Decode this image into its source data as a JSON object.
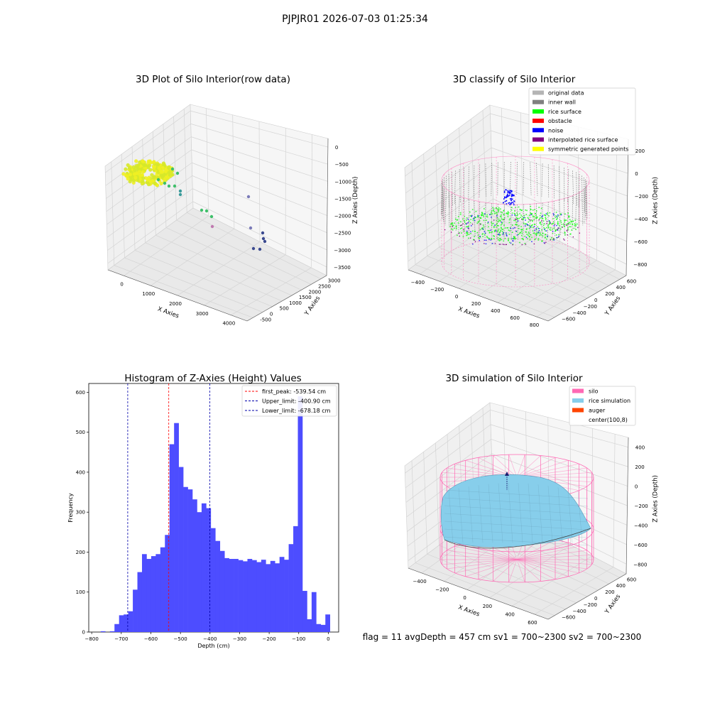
{
  "page": {
    "suptitle": "PJPJR01 2026-07-03 01:25:34",
    "footer": "flag = 11  avgDepth = 457 cm  sv1 = 700~2300  sv2 = 700~2300"
  },
  "chart_data": [
    {
      "type": "scatter",
      "title": "3D Plot of Silo Interior(row data)",
      "xlabel": "X Axies",
      "ylabel": "Y Axies",
      "zlabel": "Z Axies (Depth)",
      "xticks": [
        "0",
        "1000",
        "2000",
        "3000",
        "4000"
      ],
      "yticks": [
        "-500",
        "0",
        "500",
        "1000",
        "1500",
        "2000",
        "2500",
        "3000"
      ],
      "zticks": [
        "0",
        "−500",
        "−1000",
        "−1500",
        "−2000",
        "−2500",
        "−3000",
        "−3500"
      ],
      "xlim": [
        -500,
        4200
      ],
      "ylim": [
        -600,
        3200
      ],
      "zlim": [
        -3900,
        200
      ],
      "grid": true,
      "colors": {
        "cluster": "#d6e82a",
        "cluster_alt": "#f0f022",
        "point_green": "#3fbf6a",
        "point_teal": "#3a9a9a",
        "point_violet": "#7a7ab8",
        "point_navy": "#3b4a8f",
        "point_pink": "#c07ab0"
      }
    },
    {
      "type": "scatter",
      "title": "3D classify of Silo Interior",
      "xlabel": "X Axies",
      "ylabel": "Y Axies",
      "zlabel": "Z Axies (Depth)",
      "xticks": [
        "−400",
        "−200",
        "0",
        "200",
        "400",
        "600",
        "800"
      ],
      "yticks": [
        "−600",
        "−400",
        "−200",
        "0",
        "200",
        "400",
        "600"
      ],
      "zticks": [
        "200",
        "0",
        "−200",
        "−400",
        "−600",
        "−800"
      ],
      "grid": true,
      "legend_position": "top-right",
      "legend": [
        {
          "label": "original data",
          "color": "#b4b4b4"
        },
        {
          "label": "inner wall",
          "color": "#808080"
        },
        {
          "label": "rice surface",
          "color": "#00ff00"
        },
        {
          "label": "obstacle",
          "color": "#ff0000"
        },
        {
          "label": "noise",
          "color": "#0000ff"
        },
        {
          "label": "interpolated rice surface",
          "color": "#800080"
        },
        {
          "label": "symmetric generated points",
          "color": "#ffff00"
        }
      ]
    },
    {
      "type": "bar",
      "title": "Histogram of Z-Axies (Height) Values",
      "xlabel": "Depth (cm)",
      "ylabel": "Frequency",
      "xlim": [
        -810,
        35
      ],
      "ylim": [
        0,
        622
      ],
      "xticks": [
        -800,
        -700,
        -600,
        -500,
        -400,
        -300,
        -200,
        -100,
        0
      ],
      "yticks": [
        0,
        100,
        200,
        300,
        400,
        500,
        600
      ],
      "bin_start": -785,
      "bin_width": 15.5,
      "values": [
        0,
        2,
        0,
        2,
        20,
        42,
        44,
        52,
        106,
        150,
        195,
        183,
        190,
        195,
        212,
        243,
        470,
        523,
        413,
        363,
        357,
        332,
        300,
        322,
        310,
        260,
        228,
        203,
        185,
        183,
        183,
        180,
        177,
        183,
        180,
        175,
        181,
        170,
        178,
        172,
        188,
        181,
        220,
        265,
        590,
        103,
        32,
        100,
        20,
        18,
        44
      ],
      "bar_color": "#4d4dff",
      "legend_position": "top-right",
      "lines": [
        {
          "label": "first_peak: -539.54 cm",
          "x": -539.54,
          "color": "#ff0000"
        },
        {
          "label": "Upper_limit: -400.90 cm",
          "x": -400.9,
          "color": "#0000aa"
        },
        {
          "label": "Lower_limit: -678.18 cm",
          "x": -678.18,
          "color": "#0000aa"
        }
      ]
    },
    {
      "type": "scatter",
      "title": "3D simulation of Silo Interior",
      "xlabel": "X Axies",
      "ylabel": "Y Axies",
      "zlabel": "Z Axies (Depth)",
      "xticks": [
        "−400",
        "−200",
        "0",
        "200",
        "400",
        "600"
      ],
      "yticks": [
        "−600",
        "−400",
        "−200",
        "0",
        "200",
        "400",
        "600"
      ],
      "zticks": [
        "400",
        "200",
        "0",
        "−200",
        "−400",
        "−600",
        "−800"
      ],
      "grid": true,
      "legend_position": "top-right",
      "legend": [
        {
          "label": "silo",
          "color": "#ff69b4"
        },
        {
          "label": "rice simulation",
          "color": "#87ceeb"
        },
        {
          "label": "auger",
          "color": "#ff4500"
        },
        {
          "label": "center(100,8)",
          "color": ""
        }
      ]
    }
  ]
}
